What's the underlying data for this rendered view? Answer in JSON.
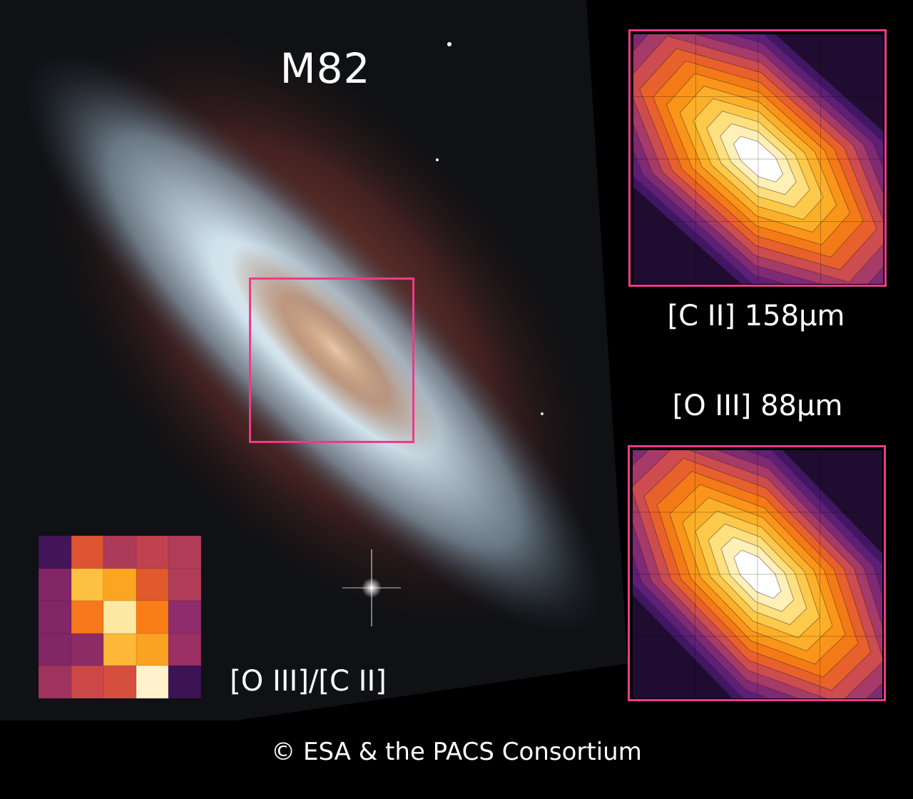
{
  "title": "M82",
  "panels": {
    "cii": {
      "label": "[C II] 158μm"
    },
    "oiii": {
      "label": "[O III] 88μm"
    },
    "ratio": {
      "label": "[O III]/[C II]"
    }
  },
  "credit": "© ESA & the PACS Consortium",
  "colors": {
    "highlight_box": "#ee3a8c",
    "contour_levels": [
      "#1f0c30",
      "#3f1766",
      "#5e1f78",
      "#7e2a74",
      "#a63a68",
      "#cc4c50",
      "#e8612c",
      "#f47a18",
      "#fa951a",
      "#fcb02a",
      "#fdc94a",
      "#fee07e",
      "#fff0b8",
      "#ffffff"
    ],
    "ratio_map": [
      [
        "#431458",
        "#dd5530",
        "#ae3a5a",
        "#c04250",
        "#b03c58"
      ],
      [
        "#822666",
        "#fdc040",
        "#fba520",
        "#e05a2c",
        "#b03c58"
      ],
      [
        "#822666",
        "#f7781a",
        "#fde8a4",
        "#f97e18",
        "#8e2c6c"
      ],
      [
        "#822666",
        "#8e2c66",
        "#fdb838",
        "#fba222",
        "#9a3064"
      ],
      [
        "#a0345e",
        "#cc4848",
        "#d64e3e",
        "#fff2cc",
        "#3c1454"
      ]
    ]
  }
}
